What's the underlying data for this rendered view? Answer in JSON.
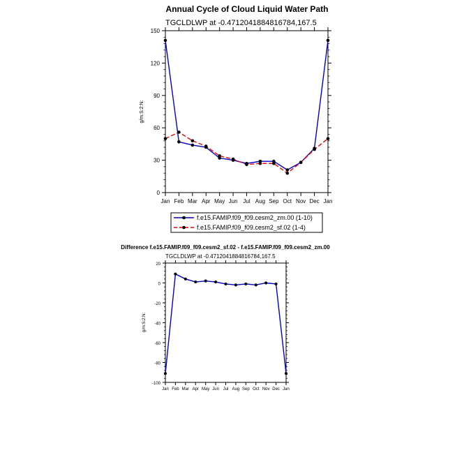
{
  "colors": {
    "series1": "#0000cc",
    "series2": "#ee0000",
    "markers": "#000000",
    "axis": "#000000"
  },
  "chart_data": [
    {
      "type": "line",
      "title": "Annual Cycle of Cloud Liquid Water Path",
      "subtitle": "TGCLDLWP at -0.4712041884816784,167.5",
      "ylabel": "g/m:S:2:N:",
      "xlabel": "",
      "categories": [
        "Jan",
        "Feb",
        "Mar",
        "Apr",
        "May",
        "Jun",
        "Jul",
        "Aug",
        "Sep",
        "Oct",
        "Nov",
        "Dec",
        "Jan"
      ],
      "ylim": [
        0,
        150
      ],
      "yticks": [
        0,
        30,
        60,
        90,
        120,
        150
      ],
      "legend_position": "below",
      "series": [
        {
          "name": "f.e15.FAMIP.f09_f09.cesm2_zm.00 (1-10)",
          "style": "solid",
          "values": [
            141,
            47,
            44,
            42,
            32,
            30,
            27,
            29,
            29,
            21,
            28,
            41,
            141
          ]
        },
        {
          "name": "f.e15.FAMIP.f09_f09.cesm2_sf.02 (1-4)",
          "style": "dashed",
          "values": [
            50,
            56,
            48,
            43,
            34,
            31,
            26,
            27,
            27,
            18,
            28,
            40,
            50
          ]
        }
      ]
    },
    {
      "type": "line",
      "title": "Difference f.e15.FAMIP.f09_f09.cesm2_sf.02 - f.e15.FAMIP.f09_f09.cesm2_zm.00",
      "subtitle": "TGCLDLWP at -0.4712041884816784,167.5",
      "ylabel": "g/m:S:2:N:",
      "xlabel": "",
      "categories": [
        "Jan",
        "Feb",
        "Mar",
        "Apr",
        "May",
        "Jun",
        "Jul",
        "Aug",
        "Sep",
        "Oct",
        "Nov",
        "Dec",
        "Jan"
      ],
      "ylim": [
        -100,
        20
      ],
      "yticks": [
        -100,
        -80,
        -60,
        -40,
        -20,
        0,
        20
      ],
      "series": [
        {
          "name": "",
          "style": "solid",
          "values": [
            -91,
            9,
            4,
            1,
            2,
            1,
            -1,
            -2,
            -1,
            -2,
            0,
            -1,
            -91
          ]
        }
      ]
    }
  ]
}
